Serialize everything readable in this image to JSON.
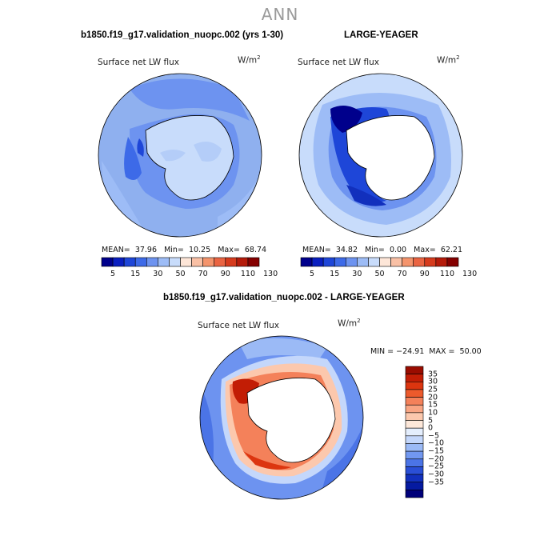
{
  "page_title": "ANN",
  "panels": [
    {
      "case_title": "b1850.f19_g17.validation_nuopc.002 (yrs 1-30)",
      "field_label": "Surface net LW flux",
      "unit_base": "W/m",
      "unit_exp": "2",
      "mean_label": "MEAN=",
      "mean": "37.96",
      "min_label": "Min=",
      "min": "10.25",
      "max_label": "Max=",
      "max": "68.74"
    },
    {
      "case_title": "LARGE-YEAGER",
      "field_label": "Surface net LW flux",
      "unit_base": "W/m",
      "unit_exp": "2",
      "mean_label": "MEAN=",
      "mean": "34.82",
      "min_label": "Min=",
      "min": "0.00",
      "max_label": "Max=",
      "max": "62.21"
    }
  ],
  "diff_panel": {
    "case_title": "b1850.f19_g17.validation_nuopc.002 - LARGE-YEAGER",
    "field_label": "Surface net LW flux",
    "unit_base": "W/m",
    "unit_exp": "2",
    "minmax_text": "MIN = −24.91  MAX =  50.00"
  },
  "colorbar_abs": {
    "tick_labels": [
      "5",
      "15",
      "30",
      "50",
      "70",
      "90",
      "110",
      "130"
    ],
    "colors": [
      "#00008c",
      "#0a1fc0",
      "#1e46d8",
      "#3d6ae8",
      "#6d93f0",
      "#9dbcf6",
      "#c8dcfb",
      "#fde6d8",
      "#f9c0a5",
      "#f4946c",
      "#ea6442",
      "#d63b1d",
      "#b51b0a",
      "#850000"
    ]
  },
  "colorbar_diff": {
    "tick_labels": [
      "35",
      "30",
      "25",
      "20",
      "15",
      "10",
      "5",
      "0",
      "−5",
      "−10",
      "−15",
      "−20",
      "−25",
      "−30",
      "−35"
    ],
    "colors": [
      "#9a0c00",
      "#c21d05",
      "#dc350f",
      "#ec5a2c",
      "#f4815a",
      "#f9a583",
      "#fcc8ad",
      "#fde8da",
      "#e4eefd",
      "#c4d7fb",
      "#9bbaf6",
      "#7298f0",
      "#4b74e6",
      "#2a4fd6",
      "#1230bd",
      "#051aa0",
      "#00007a"
    ]
  },
  "colors": {
    "title_gray": "#9a9a9a",
    "land_white": "#ffffff",
    "coast": "#000000"
  }
}
